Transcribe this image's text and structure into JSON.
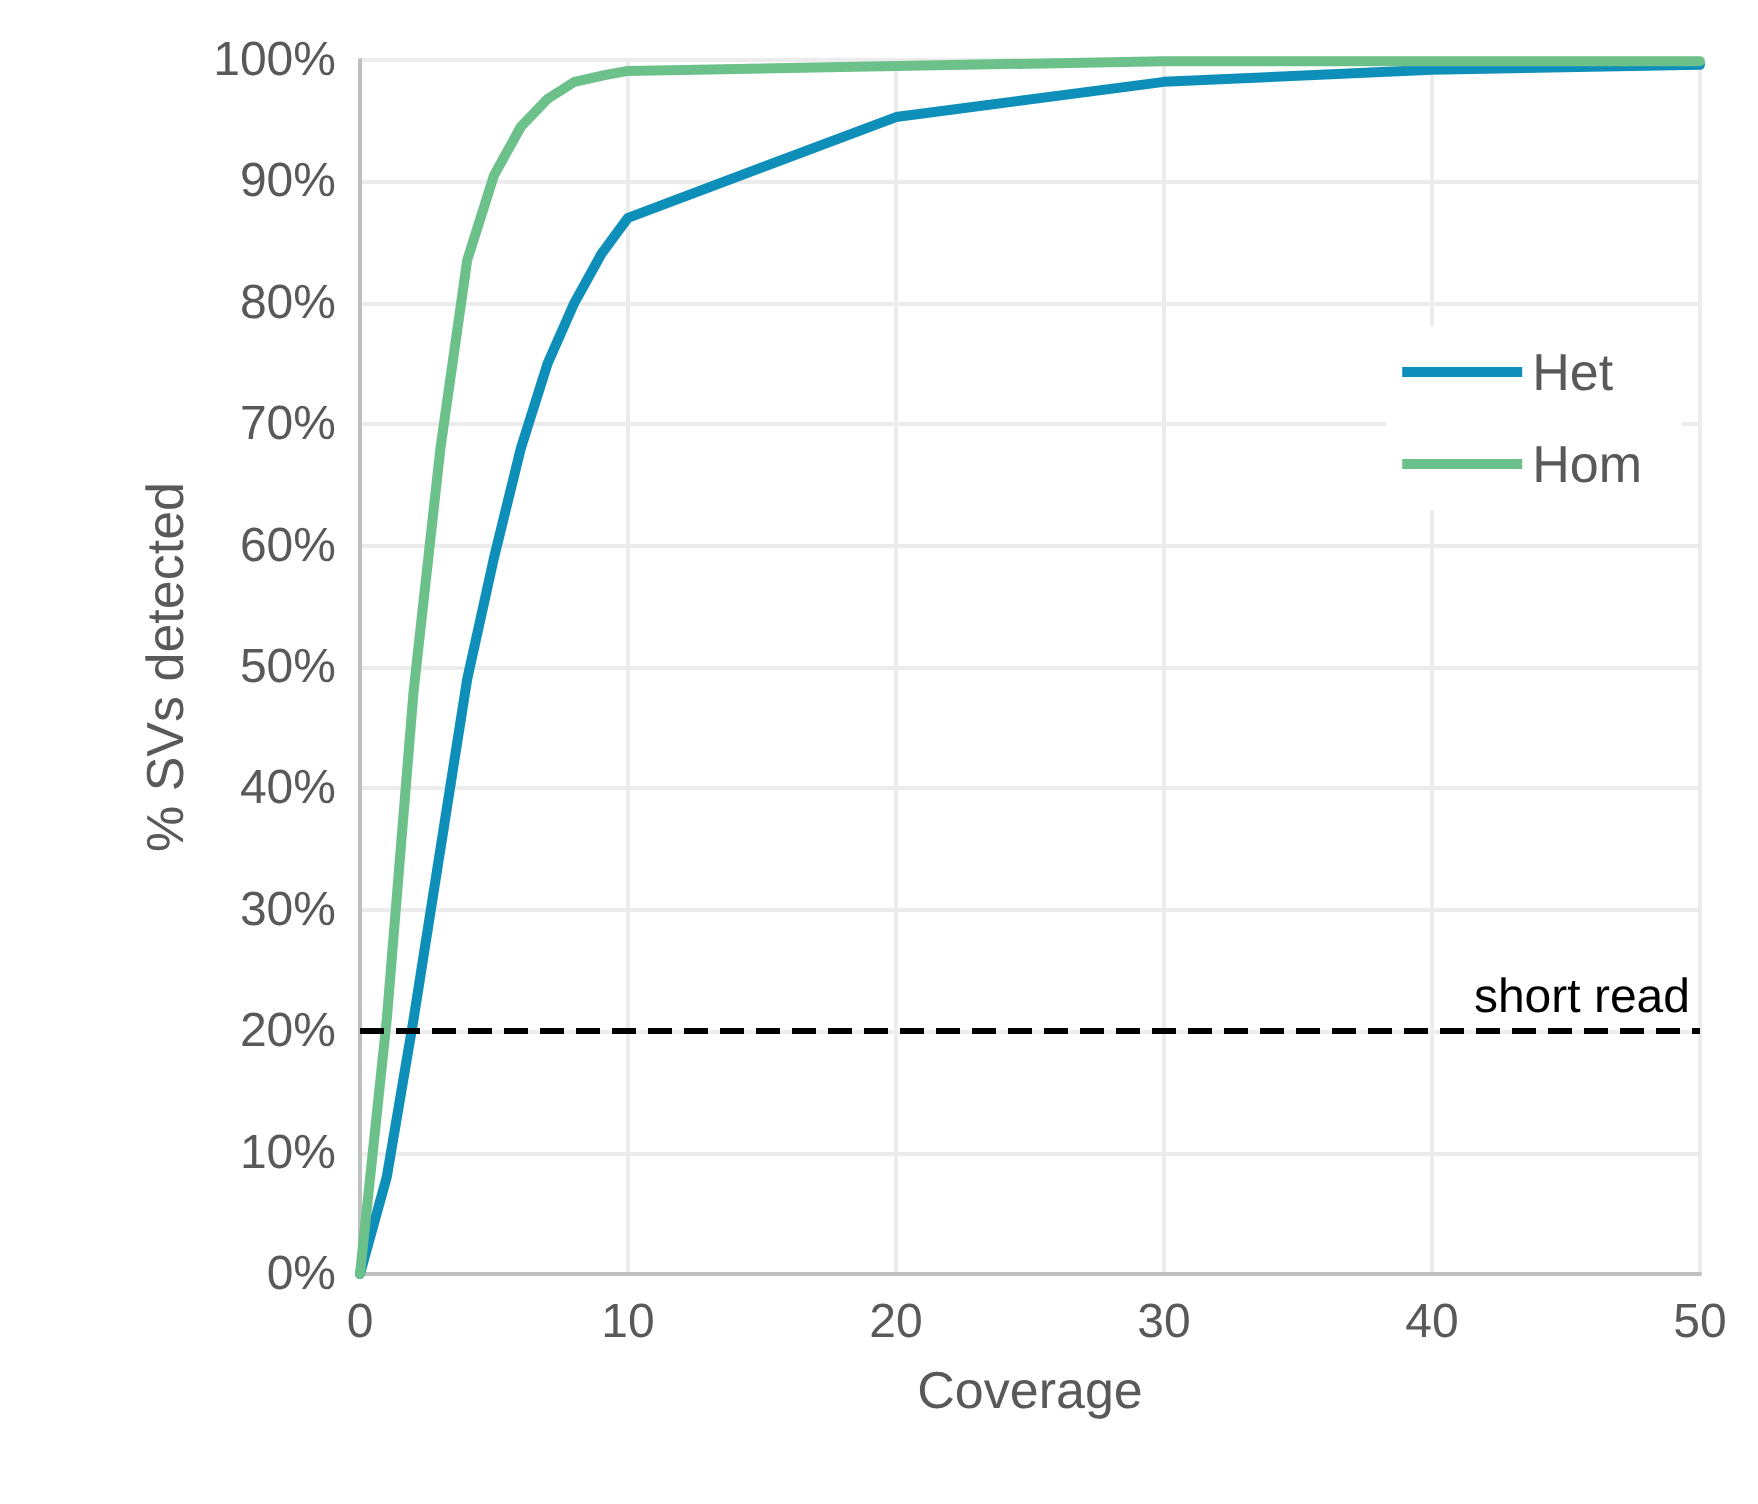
{
  "chart_data": {
    "type": "line",
    "xlabel": "Coverage",
    "ylabel": "% SVs detected",
    "x": [
      0,
      1,
      2,
      3,
      4,
      5,
      6,
      7,
      8,
      9,
      10,
      20,
      30,
      40,
      50
    ],
    "series": [
      {
        "name": "Het",
        "color": "#0e8fba",
        "values": [
          0,
          8,
          21,
          35,
          49,
          59,
          68,
          75,
          80,
          84,
          87,
          95.3,
          98.2,
          99.2,
          99.6
        ]
      },
      {
        "name": "Hom",
        "color": "#6cc18b",
        "values": [
          0,
          21,
          48,
          68,
          83.5,
          90.5,
          94.5,
          96.8,
          98.2,
          98.7,
          99.1,
          99.5,
          99.9,
          99.9,
          99.9
        ]
      }
    ],
    "xlim": [
      0,
      50
    ],
    "xticks": [
      0,
      10,
      20,
      30,
      40,
      50
    ],
    "ylim": [
      0,
      100
    ],
    "yticks": [
      {
        "value": 0,
        "label": "0%"
      },
      {
        "value": 10,
        "label": "10%"
      },
      {
        "value": 20,
        "label": "20%"
      },
      {
        "value": 30,
        "label": "30%"
      },
      {
        "value": 40,
        "label": "40%"
      },
      {
        "value": 50,
        "label": "50%"
      },
      {
        "value": 60,
        "label": "60%"
      },
      {
        "value": 70,
        "label": "70%"
      },
      {
        "value": 80,
        "label": "80%"
      },
      {
        "value": 90,
        "label": "90%"
      },
      {
        "value": 100,
        "label": "100%"
      }
    ],
    "ref_lines": [
      {
        "axis": "y",
        "value": 20,
        "label": "short read",
        "color": "#000000",
        "line_style": "dashed"
      }
    ],
    "grid": true,
    "legend": "right",
    "marker": "none",
    "line_style": "solid"
  }
}
